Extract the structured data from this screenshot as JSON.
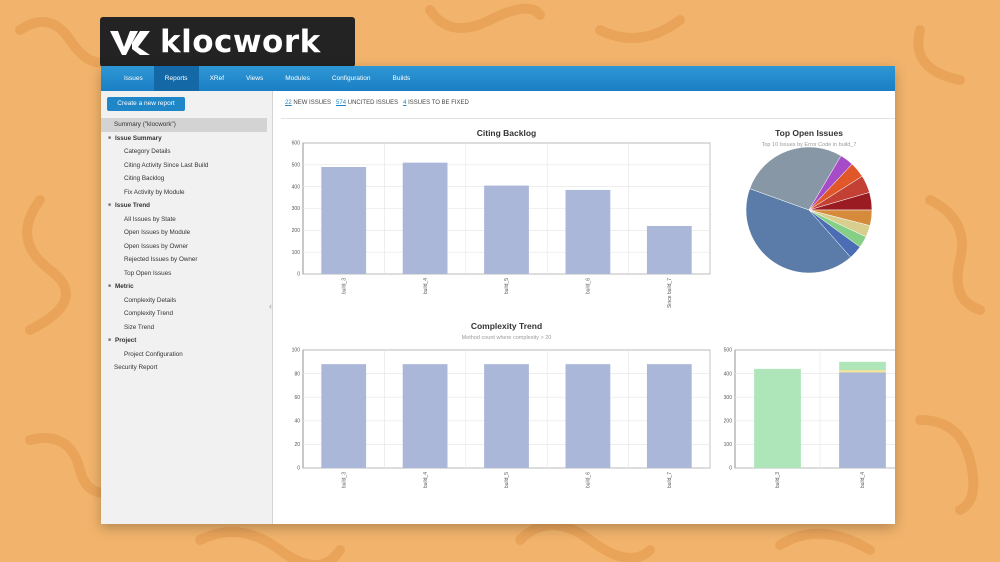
{
  "brand": {
    "name": "klocwork"
  },
  "nav": {
    "items": [
      {
        "label": "Issues",
        "active": false
      },
      {
        "label": "Reports",
        "active": true
      },
      {
        "label": "XRef",
        "active": false
      },
      {
        "label": "Views",
        "active": false
      },
      {
        "label": "Modules",
        "active": false
      },
      {
        "label": "Configuration",
        "active": false
      },
      {
        "label": "Builds",
        "active": false
      }
    ]
  },
  "sidebar": {
    "create_button": "Create a new report",
    "summary": "Summary (\"klocwork\")",
    "sections": [
      {
        "label": "Issue Summary",
        "items": [
          "Category Details",
          "Citing Activity Since Last Build",
          "Citing Backlog",
          "Fix Activity by Module"
        ]
      },
      {
        "label": "Issue Trend",
        "items": [
          "All Issues by State",
          "Open Issues by Module",
          "Open Issues by Owner",
          "Rejected Issues by Owner",
          "Top Open Issues"
        ]
      },
      {
        "label": "Metric",
        "items": [
          "Complexity Details",
          "Complexity Trend",
          "Size Trend"
        ]
      },
      {
        "label": "Project",
        "items": [
          "Project Configuration"
        ]
      }
    ],
    "footer_item": "Security Report"
  },
  "summary_bar": {
    "new_count": "22",
    "new_label": "NEW ISSUES",
    "uncited_count": "574",
    "uncited_label": "UNCITED ISSUES",
    "fix_count": "4",
    "fix_label": "ISSUES TO BE FIXED"
  },
  "colors": {
    "bar": "#aab7d9",
    "bar_green": "#aee6b9",
    "bar_yellow": "#f2e29a",
    "grid": "#e4e4e4",
    "axis": "#555555"
  },
  "chart_data": [
    {
      "type": "bar",
      "title": "Citing Backlog",
      "subtitle": "",
      "categories": [
        "build_3",
        "build_4",
        "build_5",
        "build_6",
        "Since build_7"
      ],
      "values": [
        490,
        510,
        405,
        385,
        220
      ],
      "yticks": [
        0,
        100,
        200,
        300,
        400,
        500,
        600
      ],
      "ylim": [
        0,
        600
      ],
      "grid": true
    },
    {
      "type": "pie",
      "title": "Top Open Issues",
      "subtitle": "Top 10 Issues by Error Code in build_7",
      "values": [
        42,
        28,
        3.5,
        4,
        4.5,
        4.5,
        4,
        3,
        3,
        3.5
      ],
      "colors": [
        "#5b7ca8",
        "#8797a6",
        "#a64cc7",
        "#e0582a",
        "#c24134",
        "#9b1b22",
        "#d58a3c",
        "#d8cf8e",
        "#86cf86",
        "#4a6db3"
      ]
    },
    {
      "type": "bar",
      "title": "Complexity Trend",
      "subtitle": "Method count where complexity > 20",
      "categories": [
        "build_3",
        "build_4",
        "build_5",
        "build_6",
        "build_7"
      ],
      "values": [
        88,
        88,
        88,
        88,
        88
      ],
      "yticks": [
        0,
        20,
        40,
        60,
        80,
        100
      ],
      "ylim": [
        0,
        100
      ],
      "grid": true
    },
    {
      "type": "bar",
      "title": "",
      "subtitle": "",
      "categories": [
        "build_3",
        "build_4"
      ],
      "series": [
        {
          "values": [
            420,
            0
          ]
        },
        {
          "values": [
            0,
            405
          ]
        },
        {
          "values": [
            0,
            10
          ]
        },
        {
          "values": [
            0,
            35
          ]
        }
      ],
      "yticks": [
        0,
        100,
        200,
        300,
        400,
        500
      ],
      "ylim": [
        0,
        500
      ],
      "grid": true
    }
  ]
}
